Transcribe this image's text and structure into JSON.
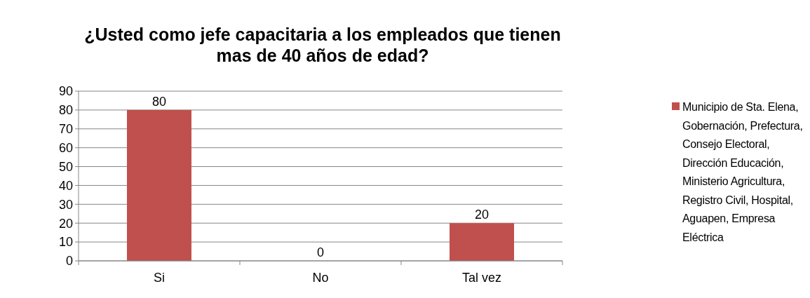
{
  "chart_data": {
    "type": "bar",
    "title": "¿Usted como jefe capacitaria a los empleados que tienen mas de 40 años de edad?",
    "categories": [
      "Si",
      "No",
      "Tal vez"
    ],
    "series": [
      {
        "name": "Municipio de Sta. Elena, Gobernación, Prefectura, Consejo Electoral, Dirección Educación, Ministerio Agricultura, Registro Civil, Hospital, Aguapen, Empresa Eléctrica",
        "color": "#c0504d",
        "values": [
          80,
          0,
          20
        ]
      }
    ],
    "ylim": [
      0,
      90
    ],
    "yticks": [
      0,
      10,
      20,
      30,
      40,
      50,
      60,
      70,
      80,
      90
    ],
    "grid": "y",
    "legend": "right",
    "data_labels": true
  }
}
